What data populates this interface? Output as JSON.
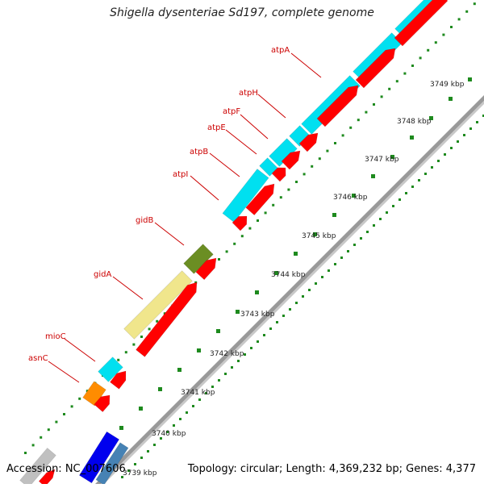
{
  "title": "Shigella dysenteriae Sd197, complete genome",
  "footer": {
    "accession": "Accession: NC_007606",
    "summary": "Topology: circular; Length: 4,369,232 bp; Genes: 4,377"
  },
  "colors": {
    "backbone": "#999999",
    "tick": "#1e8a1e",
    "label": "#cc0000",
    "label_line": "#cc0000",
    "kbp_label": "#222222"
  },
  "scale_labels": [
    "3739 kbp",
    "3740 kbp",
    "3741 kbp",
    "3742 kbp",
    "3743 kbp",
    "3744 kbp",
    "3745 kbp",
    "3746 kbp",
    "3747 kbp",
    "3748 kbp",
    "3749 kbp"
  ],
  "genes": [
    {
      "name": "atpA",
      "color": "#00e0f0"
    },
    {
      "name": "atpH",
      "color": "#00e0f0"
    },
    {
      "name": "atpF",
      "color": "#00e0f0"
    },
    {
      "name": "atpE",
      "color": "#00e0f0"
    },
    {
      "name": "atpB",
      "color": "#00e0f0"
    },
    {
      "name": "atpI",
      "color": "#00e0f0"
    },
    {
      "name": "gidB",
      "color": "#6b8e23"
    },
    {
      "name": "gidA",
      "color": "#f0e68c"
    },
    {
      "name": "mioC",
      "color": "#00e0f0"
    },
    {
      "name": "asnC",
      "color": "#ff8c00"
    }
  ],
  "other_feature_colors": [
    "#0000ee",
    "#4682b4",
    "#c0c0c0",
    "#ff0000"
  ]
}
